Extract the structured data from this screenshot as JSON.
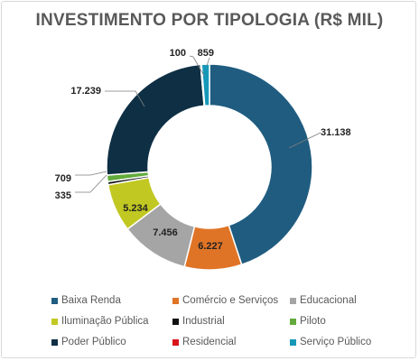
{
  "chart_data": {
    "type": "pie",
    "variant": "donut",
    "title": "INVESTIMENTO POR TIPOLOGIA (R$ MIL)",
    "categories": [
      "Baixa Renda",
      "Comércio e Serviços",
      "Educacional",
      "Iluminação Pública",
      "Industrial",
      "Piloto",
      "Poder Público",
      "Residencial",
      "Serviço Público"
    ],
    "values": [
      31138,
      6227,
      7456,
      5234,
      335,
      709,
      17239,
      100,
      859
    ],
    "data_labels": [
      "31.138",
      "6.227",
      "7.456",
      "5.234",
      "335",
      "709",
      "17.239",
      "100",
      "859"
    ],
    "colors": [
      "#1f5c80",
      "#e07426",
      "#a5a5a5",
      "#c1c822",
      "#111111",
      "#63ab3c",
      "#0e2f44",
      "#d9131a",
      "#1798b8"
    ],
    "legend_position": "bottom"
  }
}
